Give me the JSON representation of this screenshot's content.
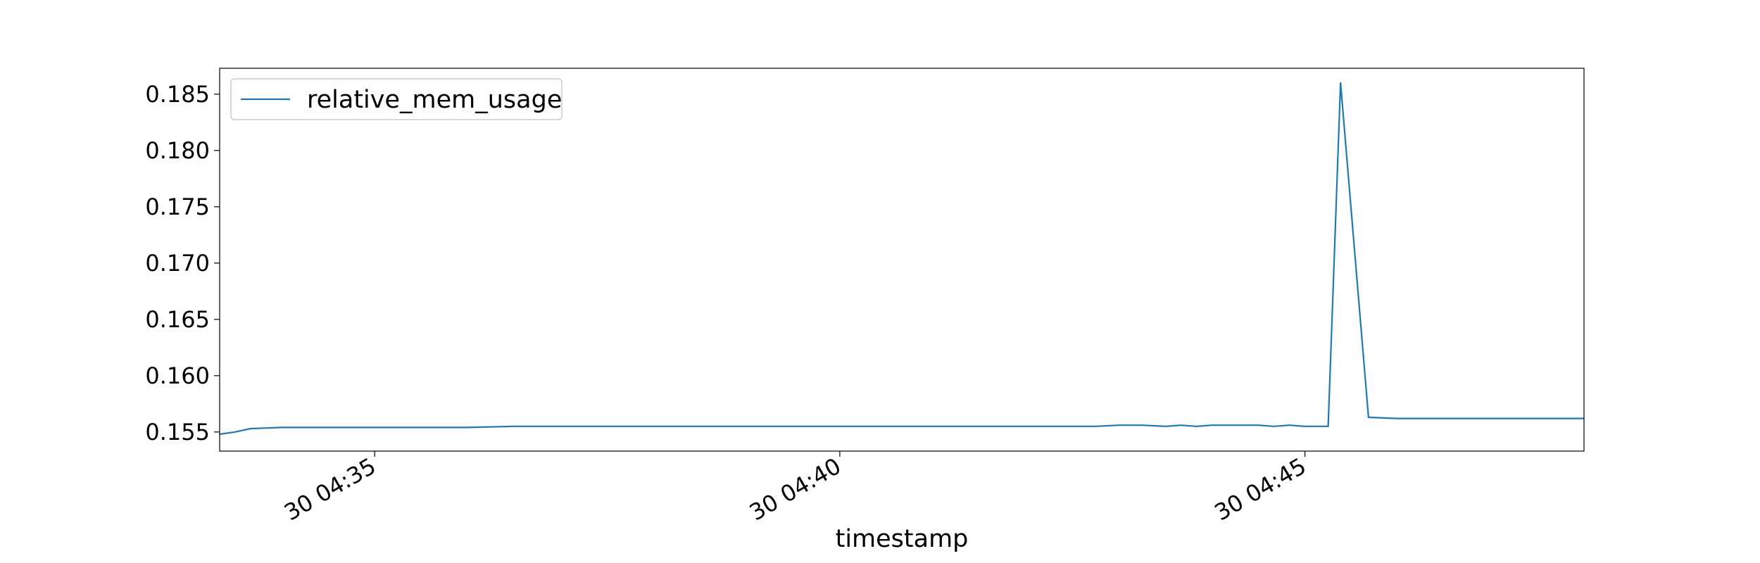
{
  "chart_data": {
    "type": "line",
    "title": "",
    "xlabel": "timestamp",
    "ylabel": "",
    "x_range": [
      "30 04:33:20",
      "30 04:48:00"
    ],
    "ylim": [
      0.1533,
      0.1873
    ],
    "x_ticks": [
      {
        "value": "30 04:35:00",
        "label": "30 04:35"
      },
      {
        "value": "30 04:40:00",
        "label": "30 04:40"
      },
      {
        "value": "30 04:45:00",
        "label": "30 04:45"
      }
    ],
    "y_ticks": [
      {
        "value": 0.155,
        "label": "0.155"
      },
      {
        "value": 0.16,
        "label": "0.160"
      },
      {
        "value": 0.165,
        "label": "0.165"
      },
      {
        "value": 0.17,
        "label": "0.170"
      },
      {
        "value": 0.175,
        "label": "0.175"
      },
      {
        "value": 0.18,
        "label": "0.180"
      },
      {
        "value": 0.185,
        "label": "0.185"
      }
    ],
    "grid": false,
    "legend": {
      "position": "top-left",
      "entries": [
        "relative_mem_usage"
      ]
    },
    "series": [
      {
        "name": "relative_mem_usage",
        "color": "#1f77b4",
        "x": [
          "30 04:33:20",
          "30 04:33:30",
          "30 04:33:40",
          "30 04:34:00",
          "30 04:34:30",
          "30 04:35:00",
          "30 04:35:30",
          "30 04:36:00",
          "30 04:36:30",
          "30 04:37:00",
          "30 04:37:30",
          "30 04:38:00",
          "30 04:38:30",
          "30 04:39:00",
          "30 04:39:30",
          "30 04:40:00",
          "30 04:40:30",
          "30 04:41:00",
          "30 04:41:30",
          "30 04:42:00",
          "30 04:42:30",
          "30 04:42:45",
          "30 04:43:00",
          "30 04:43:15",
          "30 04:43:30",
          "30 04:43:40",
          "30 04:43:50",
          "30 04:44:00",
          "30 04:44:20",
          "30 04:44:30",
          "30 04:44:40",
          "30 04:44:50",
          "30 04:45:00",
          "30 04:45:10",
          "30 04:45:15",
          "30 04:45:23",
          "30 04:45:41",
          "30 04:45:59",
          "30 04:46:10",
          "30 04:46:30",
          "30 04:47:00",
          "30 04:47:30",
          "30 04:48:00"
        ],
        "values": [
          0.1548,
          0.155,
          0.1553,
          0.1554,
          0.1554,
          0.1554,
          0.1554,
          0.1554,
          0.1555,
          0.1555,
          0.1555,
          0.1555,
          0.1555,
          0.1555,
          0.1555,
          0.1555,
          0.1555,
          0.1555,
          0.1555,
          0.1555,
          0.1555,
          0.1555,
          0.1556,
          0.1556,
          0.1555,
          0.1556,
          0.1555,
          0.1556,
          0.1556,
          0.1556,
          0.1555,
          0.1556,
          0.1555,
          0.1555,
          0.1555,
          0.186,
          0.1563,
          0.1562,
          0.1562,
          0.1562,
          0.1562,
          0.1562,
          0.1562
        ]
      }
    ]
  }
}
